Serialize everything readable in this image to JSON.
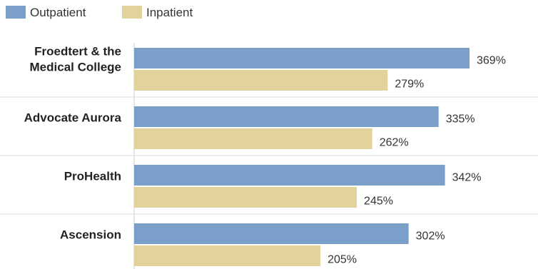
{
  "chart_data": {
    "type": "bar",
    "orientation": "horizontal",
    "categories": [
      [
        "Froedtert & the",
        "Medical College"
      ],
      [
        "Advocate Aurora"
      ],
      [
        "ProHealth"
      ],
      [
        "Ascension"
      ]
    ],
    "series": [
      {
        "name": "Outpatient",
        "color": "#7a9fc9",
        "values": [
          369,
          335,
          342,
          302
        ],
        "labels": [
          "369%",
          "335%",
          "342%",
          "302%"
        ]
      },
      {
        "name": "Inpatient",
        "color": "#e2d29c",
        "values": [
          279,
          262,
          245,
          205
        ],
        "labels": [
          "279%",
          "262%",
          "245%",
          "205%"
        ]
      }
    ],
    "xlim": [
      0,
      410
    ],
    "grid": false,
    "legend": "top-left"
  }
}
